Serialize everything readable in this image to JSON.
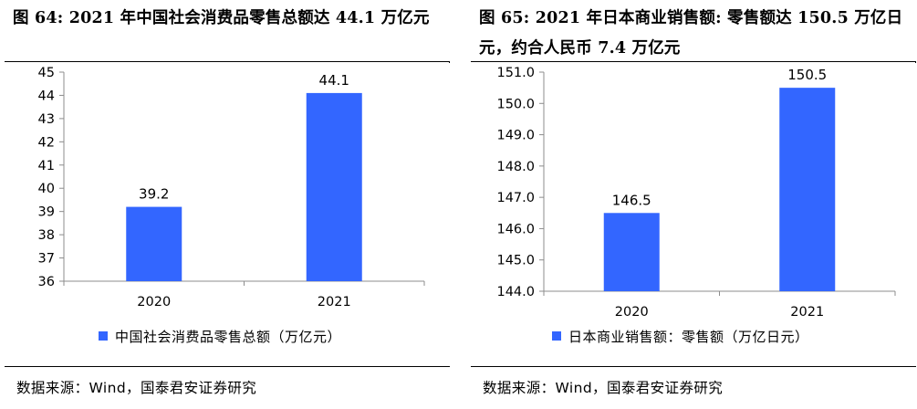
{
  "figures": [
    {
      "title": "图 64: 2021 年中国社会消费品零售总额达 44.1 万亿元",
      "source": "数据来源：Wind，国泰君安证券研究"
    },
    {
      "title": "图 65: 2021 年日本商业销售额: 零售额达 150.5 万亿日元，约合人民币 7.4 万亿元",
      "source": "数据来源：Wind，国泰君安证券研究"
    }
  ],
  "chart_data": [
    {
      "type": "bar",
      "categories": [
        "2020",
        "2021"
      ],
      "series": [
        {
          "name": "中国社会消费品零售总额（万亿元）",
          "values": [
            39.2,
            44.1
          ]
        }
      ],
      "data_labels": [
        "39.2",
        "44.1"
      ],
      "ylim": [
        36,
        45
      ],
      "yticks": [
        36,
        37,
        38,
        39,
        40,
        41,
        42,
        43,
        44,
        45
      ],
      "ytick_labels": [
        "36",
        "37",
        "38",
        "39",
        "40",
        "41",
        "42",
        "43",
        "44",
        "45"
      ],
      "grid": false,
      "legend_position": "bottom",
      "color": "#3366ff"
    },
    {
      "type": "bar",
      "categories": [
        "2020",
        "2021"
      ],
      "series": [
        {
          "name": "日本商业销售额：零售额（万亿日元）",
          "values": [
            146.5,
            150.5
          ]
        }
      ],
      "data_labels": [
        "146.5",
        "150.5"
      ],
      "ylim": [
        144.0,
        151.0
      ],
      "yticks": [
        144,
        145,
        146,
        147,
        148,
        149,
        150,
        151
      ],
      "ytick_labels": [
        "144.0",
        "145.0",
        "146.0",
        "147.0",
        "148.0",
        "149.0",
        "150.0",
        "151.0"
      ],
      "grid": false,
      "legend_position": "bottom",
      "color": "#3366ff"
    }
  ]
}
